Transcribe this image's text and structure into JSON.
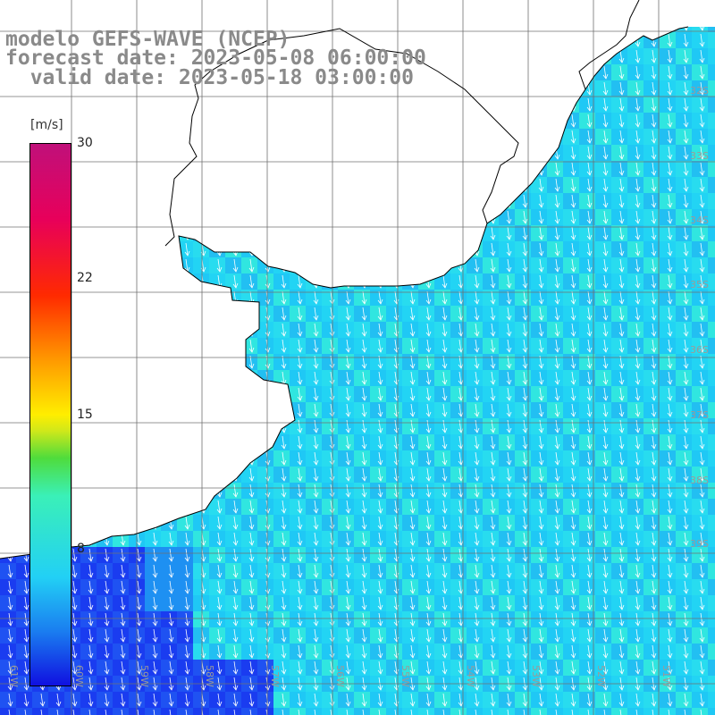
{
  "header": {
    "model": "modelo GEFS-WAVE (NCEP)",
    "forecast": "forecast date: 2023-05-08 06:00:00",
    "valid": "  valid date: 2023-05-18 03:00:00"
  },
  "colorbar": {
    "unit": "[m/s]",
    "ticks": [
      "30",
      "22",
      "15",
      "8"
    ],
    "range": [
      0,
      30
    ]
  },
  "lat_labels": [
    "32S",
    "33S",
    "34S",
    "35S",
    "36S",
    "37S",
    "38S",
    "39S"
  ],
  "lon_labels": [
    "61W",
    "60W",
    "59W",
    "58W",
    "57W",
    "56W",
    "55W",
    "54W",
    "53W",
    "52W",
    "51W"
  ],
  "colors": {
    "land": "#ffffff",
    "grid": "#707070",
    "coast": "#000000",
    "arrow": "#ffffff",
    "title": "#8a8a8a"
  }
}
